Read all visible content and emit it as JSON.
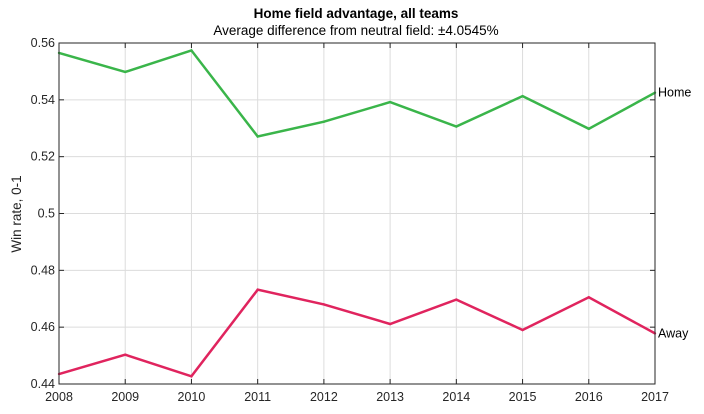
{
  "chart_data": {
    "type": "line",
    "title": "Home field advantage, all teams",
    "subtitle": "Average difference from neutral field: ±4.0545%",
    "xlabel": "",
    "ylabel": "Win rate, 0-1",
    "x": [
      2008,
      2009,
      2010,
      2011,
      2012,
      2013,
      2014,
      2015,
      2016,
      2017
    ],
    "xlim": [
      2008,
      2017
    ],
    "ylim": [
      0.44,
      0.56
    ],
    "x_ticks": [
      "2008",
      "2009",
      "2010",
      "2011",
      "2012",
      "2013",
      "2014",
      "2015",
      "2016",
      "2017"
    ],
    "y_ticks": [
      {
        "value": 0.44,
        "label": "0.44"
      },
      {
        "value": 0.46,
        "label": "0.46"
      },
      {
        "value": 0.48,
        "label": "0.48"
      },
      {
        "value": 0.5,
        "label": "0.5"
      },
      {
        "value": 0.52,
        "label": "0.52"
      },
      {
        "value": 0.54,
        "label": "0.54"
      },
      {
        "value": 0.56,
        "label": "0.56"
      }
    ],
    "grid": true,
    "series": [
      {
        "name": "Home",
        "color": "#3ab54a",
        "values": [
          0.5565,
          0.5498,
          0.5574,
          0.5271,
          0.5323,
          0.5392,
          0.5306,
          0.5413,
          0.5298,
          0.5425
        ]
      },
      {
        "name": "Away",
        "color": "#e0245e",
        "values": [
          0.4435,
          0.4503,
          0.4427,
          0.4732,
          0.468,
          0.4611,
          0.4697,
          0.459,
          0.4705,
          0.4578
        ]
      }
    ]
  }
}
